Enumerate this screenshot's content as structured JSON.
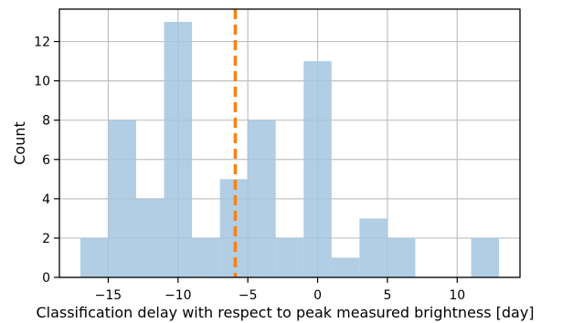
{
  "chart_data": {
    "type": "bar",
    "title": "",
    "xlabel": "Classification delay with respect to peak measured brightness [day]",
    "ylabel": "Count",
    "bins": [
      {
        "start": -17,
        "end": -15,
        "count": 2
      },
      {
        "start": -15,
        "end": -13,
        "count": 8
      },
      {
        "start": -13,
        "end": -11,
        "count": 4
      },
      {
        "start": -11,
        "end": -9,
        "count": 13
      },
      {
        "start": -9,
        "end": -7,
        "count": 2
      },
      {
        "start": -7,
        "end": -5,
        "count": 5
      },
      {
        "start": -5,
        "end": -3,
        "count": 8
      },
      {
        "start": -3,
        "end": -1,
        "count": 2
      },
      {
        "start": -1,
        "end": 1,
        "count": 11
      },
      {
        "start": 1,
        "end": 3,
        "count": 1
      },
      {
        "start": 3,
        "end": 5,
        "count": 3
      },
      {
        "start": 5,
        "end": 7,
        "count": 2
      },
      {
        "start": 7,
        "end": 9,
        "count": 0
      },
      {
        "start": 9,
        "end": 11,
        "count": 0
      },
      {
        "start": 11,
        "end": 13,
        "count": 2
      }
    ],
    "xlim": [
      -18.5,
      14.5
    ],
    "ylim": [
      0,
      13.65
    ],
    "xticks": [
      -15,
      -10,
      -5,
      0,
      5,
      10
    ],
    "xtick_labels": [
      "−15",
      "−10",
      "−5",
      "0",
      "5",
      "10"
    ],
    "yticks": [
      0,
      2,
      4,
      6,
      8,
      10,
      12
    ],
    "ytick_labels": [
      "0",
      "2",
      "4",
      "6",
      "8",
      "10",
      "12"
    ],
    "grid": true,
    "vline": {
      "x": -5.9,
      "style": "dashed"
    },
    "colors": {
      "bar": "#a3c6e0",
      "vline": "#ff7f0e",
      "grid": "#c0c0c0",
      "axis": "#000000"
    }
  }
}
